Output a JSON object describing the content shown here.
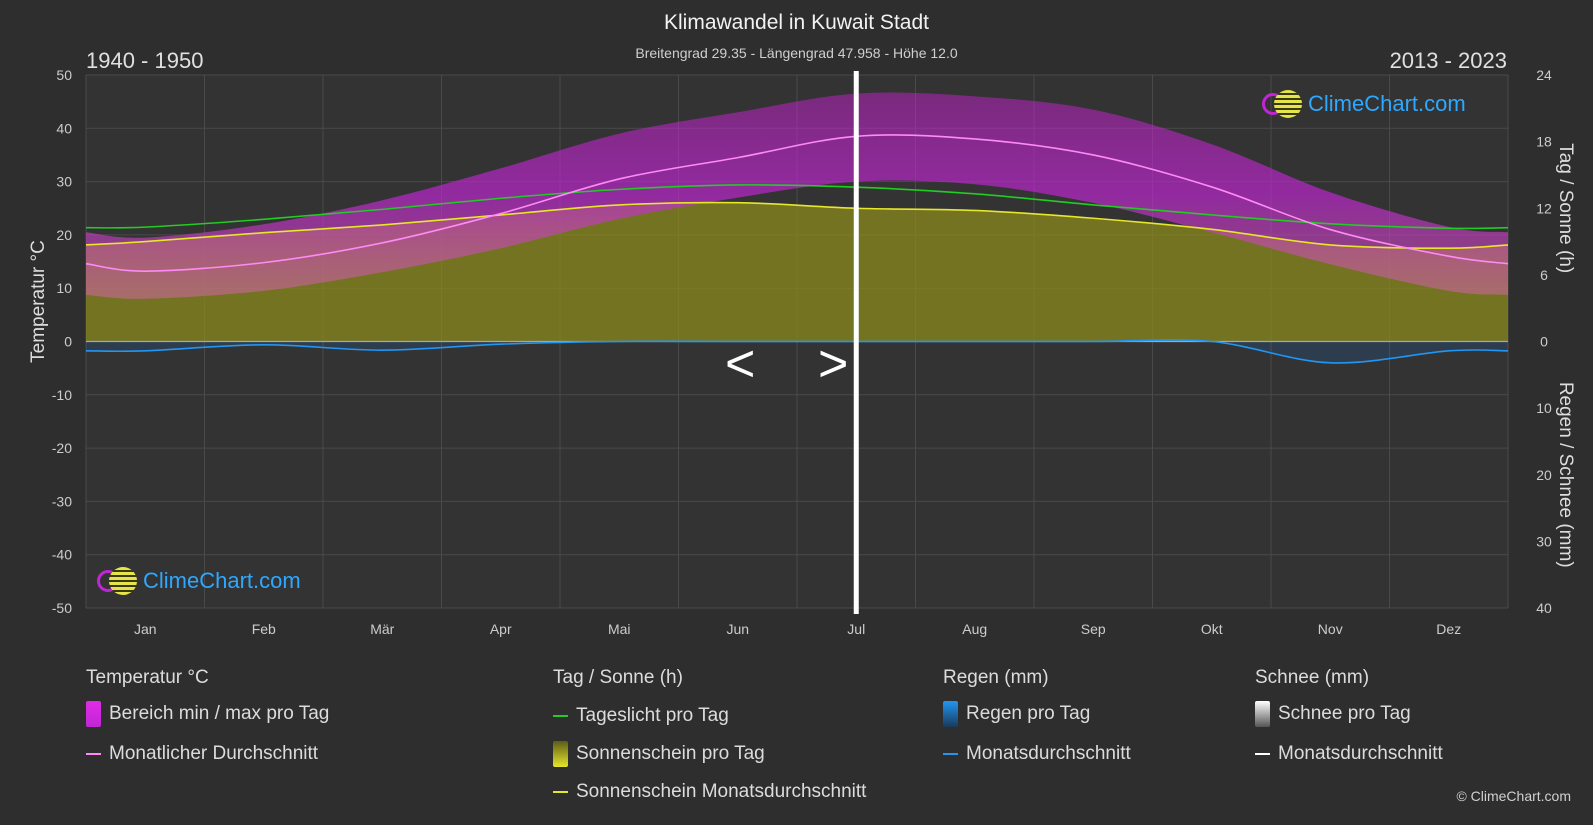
{
  "title": "Klimawandel in Kuwait Stadt",
  "subtitle": "Breitengrad 29.35 - Längengrad 47.958 - Höhe 12.0",
  "period_left": "1940 - 1950",
  "period_right": "2013 - 2023",
  "logo_text": "ClimeChart.com",
  "copyright": "© ClimeChart.com",
  "nav": {
    "prev": "<",
    "next": ">"
  },
  "colors": {
    "background": "#2e2e2e",
    "temp_range": "#c026d3",
    "temp_avg": "#ff8af5",
    "daylight": "#22cc22",
    "sunshine_fill": "#8a8a1e",
    "sunshine_avg": "#e6e62a",
    "rain": "#1a6fc9",
    "rain_avg": "#2196f3",
    "snow_avg": "#ffffff"
  },
  "legend": {
    "temperature": {
      "title": "Temperatur °C",
      "range": "Bereich min / max pro Tag",
      "avg": "Monatlicher Durchschnitt"
    },
    "sun": {
      "title": "Tag / Sonne (h)",
      "daylight": "Tageslicht pro Tag",
      "sunshine": "Sonnenschein pro Tag",
      "sunshine_avg": "Sonnenschein Monatsdurchschnitt"
    },
    "rain": {
      "title": "Regen (mm)",
      "per_day": "Regen pro Tag",
      "avg": "Monatsdurchschnitt"
    },
    "snow": {
      "title": "Schnee (mm)",
      "per_day": "Schnee pro Tag",
      "avg": "Monatsdurchschnitt"
    }
  },
  "chart_data": {
    "type": "line",
    "categories": [
      "Jan",
      "Feb",
      "Mär",
      "Apr",
      "Mai",
      "Jun",
      "Jul",
      "Aug",
      "Sep",
      "Okt",
      "Nov",
      "Dez"
    ],
    "y_left": {
      "label": "Temperatur °C",
      "range": [
        -50,
        50
      ],
      "ticks": [
        50,
        40,
        30,
        20,
        10,
        0,
        -10,
        -20,
        -30,
        -40,
        -50
      ]
    },
    "y_right_top": {
      "label": "Tag / Sonne (h)",
      "range": [
        0,
        24
      ],
      "ticks": [
        24,
        18,
        12,
        6,
        0
      ]
    },
    "y_right_bottom": {
      "label": "Regen / Schnee (mm)",
      "range": [
        0,
        40
      ],
      "ticks": [
        0,
        10,
        20,
        30,
        40
      ]
    },
    "divider_after_month": 6.5,
    "series": [
      {
        "name": "Monatlicher Durchschnitt",
        "unit": "°C",
        "values": [
          13.2,
          14.8,
          18.5,
          24.0,
          30.5,
          34.5,
          38.5,
          38.0,
          35.0,
          29.0,
          21.0,
          16.0
        ]
      },
      {
        "name": "Bereich min / max pro Tag (max)",
        "unit": "°C",
        "values": [
          19.5,
          22.0,
          26.5,
          32.5,
          39.0,
          43.0,
          46.5,
          46.0,
          43.5,
          37.0,
          28.0,
          21.5
        ]
      },
      {
        "name": "Bereich min / max pro Tag (min)",
        "unit": "°C",
        "values": [
          8.0,
          9.5,
          13.0,
          17.5,
          23.0,
          27.0,
          30.0,
          29.5,
          26.0,
          20.5,
          14.5,
          9.5
        ]
      },
      {
        "name": "Tageslicht pro Tag",
        "unit": "h",
        "values": [
          10.3,
          11.0,
          11.9,
          12.9,
          13.7,
          14.1,
          13.9,
          13.3,
          12.3,
          11.4,
          10.6,
          10.2
        ]
      },
      {
        "name": "Sonnenschein Monatsdurchschnitt",
        "unit": "h",
        "values": [
          9.0,
          9.8,
          10.5,
          11.4,
          12.3,
          12.5,
          12.0,
          11.8,
          11.1,
          10.1,
          8.7,
          8.4
        ]
      },
      {
        "name": "Regen Monatsdurchschnitt",
        "unit": "mm",
        "values": [
          1.4,
          0.5,
          1.3,
          0.4,
          0.0,
          0.0,
          0.0,
          0.0,
          0.0,
          0.0,
          3.2,
          1.4
        ]
      },
      {
        "name": "Schnee Monatsdurchschnitt",
        "unit": "mm",
        "values": [
          0,
          0,
          0,
          0,
          0,
          0,
          0,
          0,
          0,
          0,
          0,
          0
        ]
      }
    ]
  }
}
